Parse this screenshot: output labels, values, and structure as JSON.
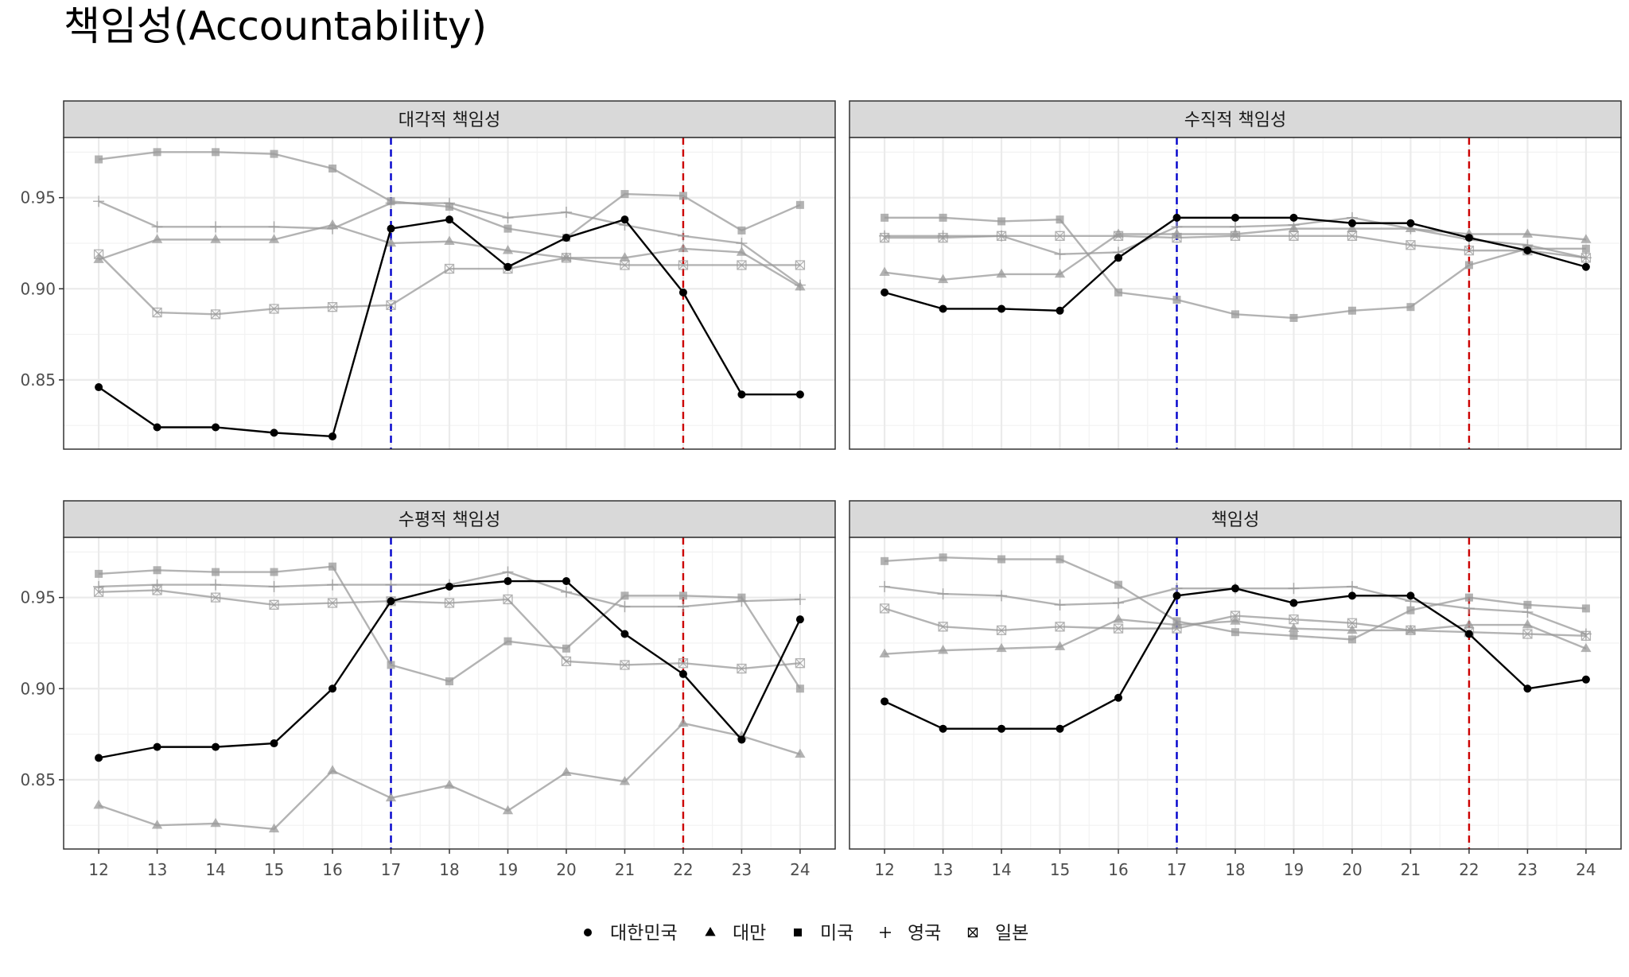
{
  "title": "책임성(Accountability)",
  "chart_data": {
    "type": "line",
    "x_ticks": [
      12,
      13,
      14,
      15,
      16,
      17,
      18,
      19,
      20,
      21,
      22,
      23,
      24
    ],
    "xlim": [
      11.4,
      24.6
    ],
    "ylim": [
      0.812,
      0.983
    ],
    "y_ticks": [
      0.85,
      0.9,
      0.95
    ],
    "y_tick_labels": [
      "0.85",
      "0.90",
      "0.95"
    ],
    "vlines": [
      {
        "x": 17,
        "color": "#0000CC",
        "style": "dashed"
      },
      {
        "x": 22,
        "color": "#CC0000",
        "style": "dashed"
      }
    ],
    "colors": {
      "highlight": "#000000",
      "others": "#999999",
      "strip_bg": "#D9D9D9",
      "grid": "#EBEBEB"
    },
    "legend": {
      "position": "bottom",
      "entries": [
        {
          "label": "대한민국",
          "shape": "circle"
        },
        {
          "label": "대만",
          "shape": "triangle"
        },
        {
          "label": "미국",
          "shape": "square"
        },
        {
          "label": "영국",
          "shape": "plus"
        },
        {
          "label": "일본",
          "shape": "boxcross"
        }
      ]
    },
    "panels": [
      {
        "title": "대각적 책임성",
        "series": [
          {
            "name": "대만",
            "values": [
              0.916,
              0.927,
              0.927,
              0.927,
              0.935,
              0.925,
              0.926,
              0.921,
              0.917,
              0.917,
              0.922,
              0.92,
              0.901
            ]
          },
          {
            "name": "미국",
            "values": [
              0.971,
              0.975,
              0.975,
              0.974,
              0.966,
              0.948,
              0.945,
              0.933,
              0.928,
              0.952,
              0.951,
              0.932,
              0.946
            ]
          },
          {
            "name": "영국",
            "values": [
              0.948,
              0.934,
              0.934,
              0.934,
              0.933,
              0.947,
              0.947,
              0.939,
              0.942,
              0.935,
              0.929,
              0.925,
              0.902
            ]
          },
          {
            "name": "일본",
            "values": [
              0.919,
              0.887,
              0.886,
              0.889,
              0.89,
              0.891,
              0.911,
              0.911,
              0.917,
              0.913,
              0.913,
              0.913,
              0.913
            ]
          },
          {
            "name": "대한민국",
            "values": [
              0.846,
              0.824,
              0.824,
              0.821,
              0.819,
              0.933,
              0.938,
              0.912,
              0.928,
              0.938,
              0.898,
              0.842,
              0.842
            ]
          }
        ]
      },
      {
        "title": "수직적 책임성",
        "series": [
          {
            "name": "대만",
            "values": [
              0.909,
              0.905,
              0.908,
              0.908,
              0.93,
              0.93,
              0.93,
              0.933,
              0.933,
              0.933,
              0.93,
              0.93,
              0.927
            ]
          },
          {
            "name": "미국",
            "values": [
              0.939,
              0.939,
              0.937,
              0.938,
              0.898,
              0.894,
              0.886,
              0.884,
              0.888,
              0.89,
              0.913,
              0.922,
              0.922
            ]
          },
          {
            "name": "영국",
            "values": [
              0.929,
              0.929,
              0.929,
              0.919,
              0.92,
              0.934,
              0.934,
              0.935,
              0.939,
              0.933,
              0.927,
              0.924,
              0.917
            ]
          },
          {
            "name": "일본",
            "values": [
              0.928,
              0.928,
              0.929,
              0.929,
              0.929,
              0.928,
              0.929,
              0.929,
              0.929,
              0.924,
              0.921,
              0.921,
              0.917
            ]
          },
          {
            "name": "대한민국",
            "values": [
              0.898,
              0.889,
              0.889,
              0.888,
              0.917,
              0.939,
              0.939,
              0.939,
              0.936,
              0.936,
              0.928,
              0.921,
              0.912
            ]
          }
        ]
      },
      {
        "title": "수평적 책임성",
        "series": [
          {
            "name": "대만",
            "values": [
              0.836,
              0.825,
              0.826,
              0.823,
              0.855,
              0.84,
              0.847,
              0.833,
              0.854,
              0.849,
              0.881,
              0.874,
              0.864
            ]
          },
          {
            "name": "미국",
            "values": [
              0.963,
              0.965,
              0.964,
              0.964,
              0.967,
              0.913,
              0.904,
              0.926,
              0.922,
              0.951,
              0.951,
              0.95,
              0.9
            ]
          },
          {
            "name": "영국",
            "values": [
              0.956,
              0.957,
              0.957,
              0.956,
              0.957,
              0.957,
              0.957,
              0.964,
              0.953,
              0.945,
              0.945,
              0.948,
              0.949
            ]
          },
          {
            "name": "일본",
            "values": [
              0.953,
              0.954,
              0.95,
              0.946,
              0.947,
              0.948,
              0.947,
              0.949,
              0.915,
              0.913,
              0.914,
              0.911,
              0.914
            ]
          },
          {
            "name": "대한민국",
            "values": [
              0.862,
              0.868,
              0.868,
              0.87,
              0.9,
              0.948,
              0.956,
              0.959,
              0.959,
              0.93,
              0.908,
              0.872,
              0.938
            ]
          }
        ]
      },
      {
        "title": "책임성",
        "series": [
          {
            "name": "대만",
            "values": [
              0.919,
              0.921,
              0.922,
              0.923,
              0.938,
              0.935,
              0.937,
              0.933,
              0.932,
              0.932,
              0.935,
              0.935,
              0.922
            ]
          },
          {
            "name": "미국",
            "values": [
              0.97,
              0.972,
              0.971,
              0.971,
              0.957,
              0.937,
              0.931,
              0.929,
              0.927,
              0.943,
              0.95,
              0.946,
              0.944
            ]
          },
          {
            "name": "영국",
            "values": [
              0.956,
              0.952,
              0.951,
              0.946,
              0.947,
              0.955,
              0.955,
              0.955,
              0.956,
              0.948,
              0.944,
              0.942,
              0.93
            ]
          },
          {
            "name": "일본",
            "values": [
              0.944,
              0.934,
              0.932,
              0.934,
              0.933,
              0.933,
              0.94,
              0.938,
              0.936,
              0.932,
              0.931,
              0.93,
              0.929
            ]
          },
          {
            "name": "대한민국",
            "values": [
              0.893,
              0.878,
              0.878,
              0.878,
              0.895,
              0.951,
              0.955,
              0.947,
              0.951,
              0.951,
              0.93,
              0.9,
              0.905
            ]
          }
        ]
      }
    ]
  }
}
